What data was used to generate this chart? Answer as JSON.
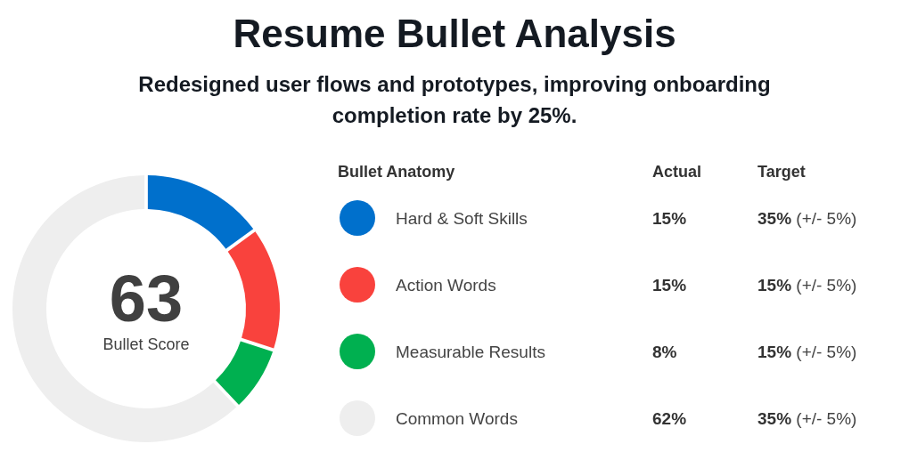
{
  "chart_data": {
    "type": "donut",
    "title": "Resume Bullet Analysis",
    "subtitle": "Redesigned user flows and prototypes, improving onboarding completion rate by 25%.",
    "categories": [
      "Hard & Soft Skills",
      "Action Words",
      "Measurable Results",
      "Common Words"
    ],
    "values": [
      15,
      15,
      8,
      62
    ],
    "colors": [
      "#0070cc",
      "#f9423d",
      "#00b050",
      "#eeeeee"
    ],
    "value_labels": [
      "15%",
      "15%",
      "8%",
      "62%"
    ],
    "legend": "right",
    "legend_title": "Bullet Anatomy",
    "annotations": [
      "63",
      "Bullet Score",
      "Actual",
      "Target",
      "35% (+/- 5%)",
      "15% (+/- 5%)",
      "15% (+/- 5%)",
      "35% (+/- 5%)"
    ]
  }
}
